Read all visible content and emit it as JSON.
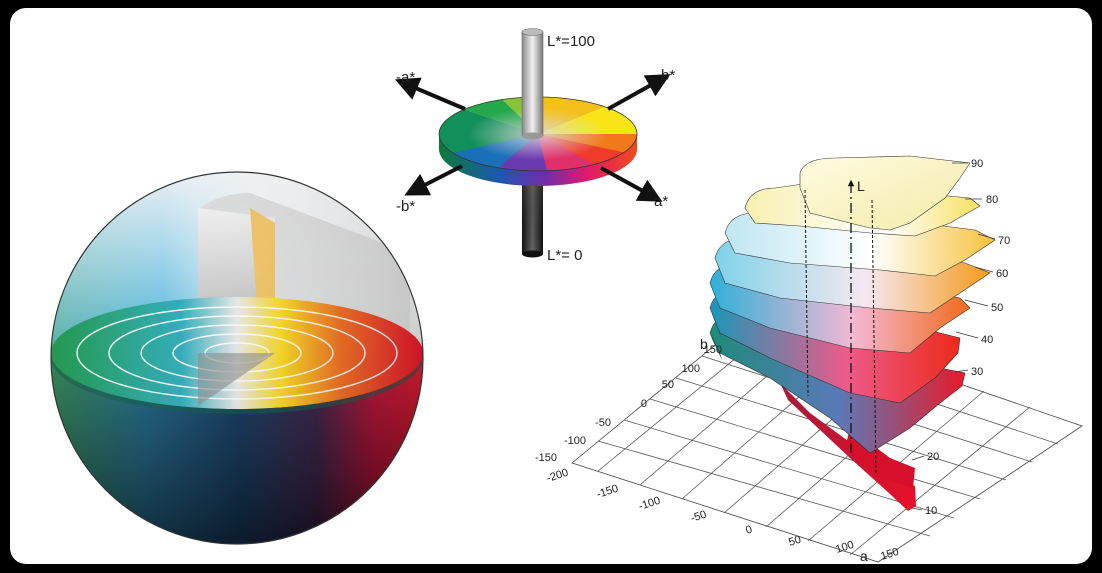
{
  "disk_labels": {
    "l_top": "L*=100",
    "l_bottom": "L*= 0",
    "minus_a": "-a*",
    "plus_b": "b*",
    "minus_b": "-b*",
    "plus_a": "a*"
  },
  "solid": {
    "l_axis": "L",
    "a_axis": "a",
    "b_axis": "b",
    "a_ticks": [
      "-200",
      "-150",
      "-100",
      "-50",
      "0",
      "50",
      "100",
      "150"
    ],
    "b_ticks": [
      "-150",
      "-100",
      "-50",
      "0",
      "50",
      "100",
      "150"
    ],
    "level_labels": [
      "90",
      "80",
      "70",
      "60",
      "50",
      "40",
      "30",
      "20",
      "10"
    ]
  },
  "colors": {
    "red": "#e8102a",
    "yellow": "#f7e31a",
    "green": "#19a24a",
    "blue": "#1d5fb0",
    "cyan": "#1bb0d8"
  }
}
